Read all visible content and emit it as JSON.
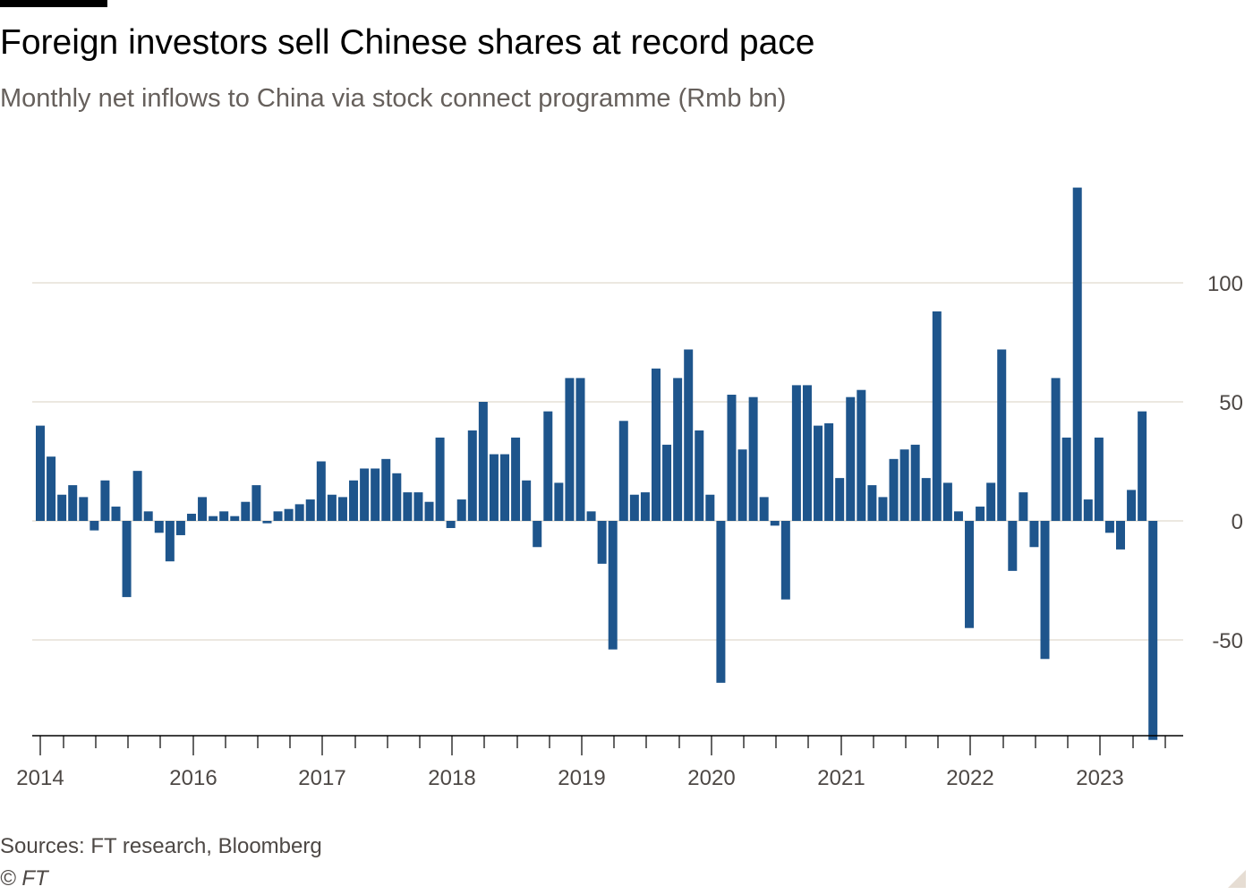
{
  "header": {
    "title": "Foreign investors sell Chinese shares at record pace",
    "subtitle": "Monthly net inflows to China via stock connect programme (Rmb bn)"
  },
  "footer": {
    "source": "Sources: FT research, Bloomberg",
    "copyright": "© FT"
  },
  "colors": {
    "bar": "#1e558c",
    "grid": "#e6e0d5",
    "axis": "#000000",
    "text": "#4d4845"
  },
  "chart_data": {
    "type": "bar",
    "title": "Foreign investors sell Chinese shares at record pace",
    "subtitle": "Monthly net inflows to China via stock connect programme (Rmb bn)",
    "xlabel": "",
    "ylabel": "",
    "ylim": [
      -90,
      140
    ],
    "yticks": [
      -50,
      0,
      50,
      100
    ],
    "ytick_labels": [
      "-50",
      "0",
      "50",
      "100"
    ],
    "xtick_labels": [
      "2014",
      "2016",
      "2017",
      "2018",
      "2019",
      "2020",
      "2021",
      "2022",
      "2023"
    ],
    "grid": true,
    "series": [
      {
        "values": [
          40,
          27,
          11,
          15,
          10,
          -4,
          17,
          6,
          -32,
          21,
          4,
          -5,
          -17,
          -6,
          3,
          10,
          2,
          4,
          2,
          8,
          15,
          -1,
          4,
          5,
          7,
          9,
          25,
          11,
          10,
          17,
          22,
          22,
          26,
          20,
          12,
          12,
          8,
          35,
          -3,
          9,
          38,
          50,
          28,
          28,
          35,
          17,
          -11,
          46,
          16,
          60,
          60,
          4,
          -18,
          -54,
          42,
          11,
          12,
          64,
          32,
          60,
          72,
          38,
          11,
          -68,
          53,
          30,
          52,
          10,
          -2,
          -33,
          57,
          57,
          40,
          41,
          18,
          52,
          55,
          15,
          10,
          26,
          30,
          32,
          18,
          88,
          16,
          4,
          -45,
          6,
          16,
          72,
          -21,
          12,
          -11,
          -58,
          60,
          35,
          140,
          9,
          35,
          -5,
          -12,
          13,
          46,
          -92
        ]
      }
    ]
  }
}
